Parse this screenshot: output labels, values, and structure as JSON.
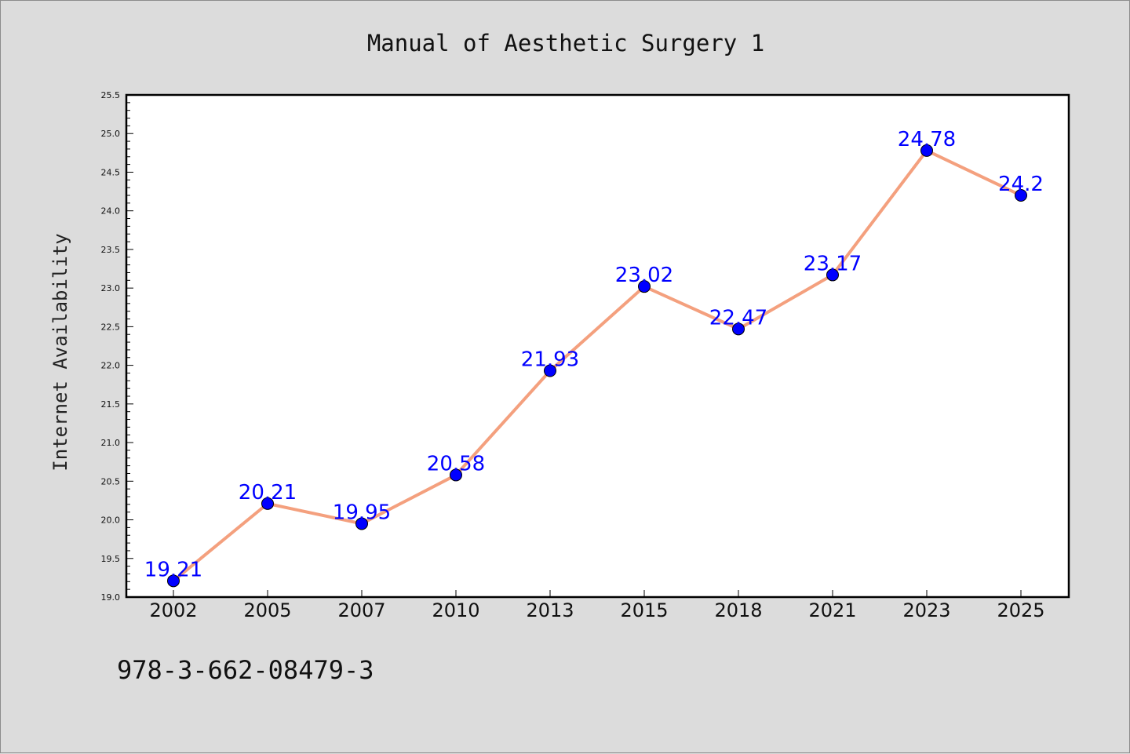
{
  "chart_data": {
    "type": "line",
    "title": "Manual of Aesthetic Surgery 1",
    "xlabel": "",
    "ylabel": "Internet Availability",
    "categories": [
      "2002",
      "2005",
      "2007",
      "2010",
      "2013",
      "2015",
      "2018",
      "2021",
      "2023",
      "2025"
    ],
    "values": [
      19.21,
      20.21,
      19.95,
      20.58,
      21.93,
      23.02,
      22.47,
      23.17,
      24.78,
      24.2
    ],
    "data_labels": [
      "19.21",
      "20.21",
      "19.95",
      "20.58",
      "21.93",
      "23.02",
      "22.47",
      "23.17",
      "24.78",
      "24.2"
    ],
    "ylim": [
      19.0,
      25.5
    ],
    "yticks": [
      "19.0",
      "19.5",
      "20.0",
      "20.5",
      "21.0",
      "21.5",
      "22.0",
      "22.5",
      "23.0",
      "23.5",
      "24.0",
      "24.5",
      "25.0",
      "25.5"
    ],
    "grid": false,
    "line_color": "#f4a07e",
    "marker_color": "#0000ff",
    "label_color": "#0000ff"
  },
  "footer": {
    "isbn": "978-3-662-08479-3"
  }
}
